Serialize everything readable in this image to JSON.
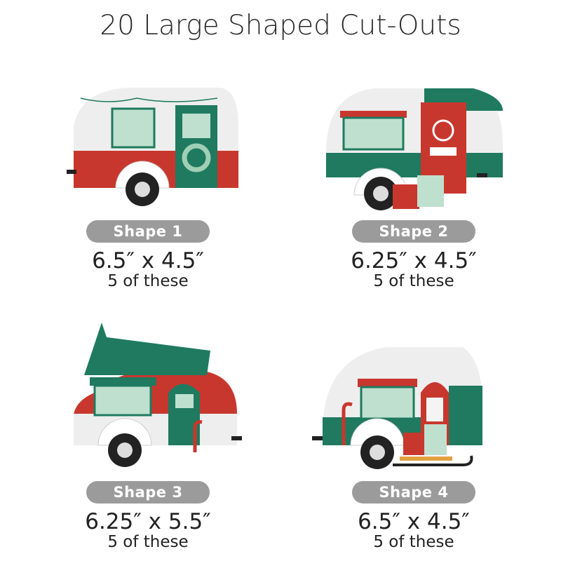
{
  "title": "20 Large Shaped Cut-Outs",
  "colors": {
    "red": "#c8372d",
    "green": "#1f7a5f",
    "mint": "#bfe0cf",
    "pill": "#9b9b9b",
    "wheel": "#222222"
  },
  "shapes": [
    {
      "label": "Shape 1",
      "size": "6.5″ x 4.5″",
      "count": "5 of these"
    },
    {
      "label": "Shape 2",
      "size": "6.25″ x 4.5″",
      "count": "5 of these"
    },
    {
      "label": "Shape 3",
      "size": "6.25″ x 5.5″",
      "count": "5 of these"
    },
    {
      "label": "Shape 4",
      "size": "6.5″ x 4.5″",
      "count": "5 of these"
    }
  ]
}
